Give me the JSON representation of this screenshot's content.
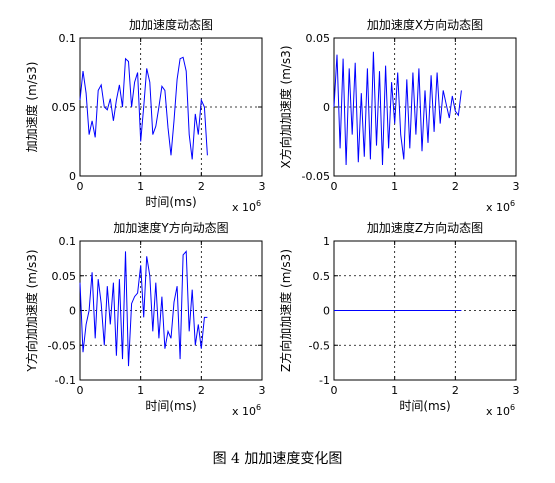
{
  "figure": {
    "caption": "图 4  加加速度变化图"
  },
  "chart_data": [
    {
      "type": "line",
      "title": "加加速度动态图",
      "xlabel": "时间(ms)",
      "ylabel": "加加速度 (m/s3)",
      "x_exponent": "x 10",
      "x_exponent_power": "6",
      "xlim": [
        0,
        3
      ],
      "ylim": [
        0,
        0.1
      ],
      "xticks": [
        "0",
        "1",
        "2",
        "3"
      ],
      "yticks": [
        "0",
        "0.05",
        "0.1"
      ],
      "grid": true,
      "grid_style": "dotted",
      "line_color": "#0000ff",
      "series": [
        {
          "x": [
            0,
            0.05,
            0.1,
            0.15,
            0.2,
            0.25,
            0.3,
            0.35,
            0.4,
            0.45,
            0.5,
            0.55,
            0.6,
            0.65,
            0.7,
            0.75,
            0.8,
            0.85,
            0.9,
            0.95,
            1.0,
            1.05,
            1.1,
            1.15,
            1.2,
            1.25,
            1.3,
            1.35,
            1.4,
            1.45,
            1.5,
            1.55,
            1.6,
            1.65,
            1.7,
            1.75,
            1.8,
            1.85,
            1.9,
            1.95,
            2.0,
            2.05,
            2.1
          ],
          "y": [
            0.055,
            0.076,
            0.06,
            0.03,
            0.04,
            0.028,
            0.062,
            0.066,
            0.05,
            0.048,
            0.056,
            0.04,
            0.055,
            0.066,
            0.05,
            0.085,
            0.083,
            0.05,
            0.068,
            0.075,
            0.025,
            0.05,
            0.078,
            0.068,
            0.03,
            0.036,
            0.05,
            0.065,
            0.062,
            0.035,
            0.015,
            0.04,
            0.07,
            0.085,
            0.086,
            0.076,
            0.03,
            0.012,
            0.045,
            0.03,
            0.055,
            0.05,
            0.015
          ]
        }
      ]
    },
    {
      "type": "line",
      "title": "加加速度X方向动态图",
      "xlabel": "",
      "ylabel": "X方向加加速度 (m/s3)",
      "x_exponent": "x 10",
      "x_exponent_power": "6",
      "xlim": [
        0,
        3
      ],
      "ylim": [
        -0.05,
        0.05
      ],
      "xticks": [
        "0",
        "1",
        "2",
        "3"
      ],
      "yticks": [
        "-0.05",
        "0",
        "0.05"
      ],
      "grid": true,
      "grid_style": "dotted",
      "line_color": "#0000ff",
      "series": [
        {
          "x": [
            0,
            0.05,
            0.1,
            0.15,
            0.2,
            0.25,
            0.3,
            0.35,
            0.4,
            0.45,
            0.5,
            0.55,
            0.6,
            0.65,
            0.7,
            0.75,
            0.8,
            0.85,
            0.9,
            0.95,
            1.0,
            1.05,
            1.1,
            1.15,
            1.2,
            1.25,
            1.3,
            1.35,
            1.4,
            1.45,
            1.5,
            1.55,
            1.6,
            1.65,
            1.7,
            1.75,
            1.8,
            1.85,
            1.9,
            1.95,
            2.0,
            2.05,
            2.1
          ],
          "y": [
            0.0,
            0.038,
            -0.03,
            0.035,
            -0.042,
            0.028,
            -0.02,
            0.032,
            -0.04,
            0.01,
            -0.036,
            0.028,
            -0.038,
            0.04,
            -0.028,
            0.026,
            -0.042,
            0.03,
            -0.03,
            0.018,
            -0.012,
            0.025,
            -0.02,
            -0.038,
            0.02,
            -0.03,
            0.025,
            -0.02,
            0.028,
            -0.032,
            0.012,
            -0.026,
            0.023,
            -0.018,
            0.025,
            -0.012,
            0.012,
            0.002,
            -0.008,
            0.008,
            -0.003,
            -0.006,
            0.012
          ]
        }
      ]
    },
    {
      "type": "line",
      "title": "加加速度Y方向动态图",
      "xlabel": "时间(ms)",
      "ylabel": "Y方向加加速度 (m/s3)",
      "x_exponent": "x 10",
      "x_exponent_power": "6",
      "xlim": [
        0,
        3
      ],
      "ylim": [
        -0.1,
        0.1
      ],
      "xticks": [
        "0",
        "1",
        "2",
        "3"
      ],
      "yticks": [
        "-0.1",
        "-0.05",
        "0",
        "0.05",
        "0.1"
      ],
      "grid": true,
      "grid_style": "dotted",
      "line_color": "#0000ff",
      "series": [
        {
          "x": [
            0,
            0.05,
            0.1,
            0.15,
            0.2,
            0.25,
            0.3,
            0.35,
            0.4,
            0.45,
            0.5,
            0.55,
            0.6,
            0.65,
            0.7,
            0.75,
            0.8,
            0.85,
            0.9,
            0.95,
            1.0,
            1.05,
            1.1,
            1.15,
            1.2,
            1.25,
            1.3,
            1.35,
            1.4,
            1.45,
            1.5,
            1.55,
            1.6,
            1.65,
            1.7,
            1.75,
            1.8,
            1.85,
            1.9,
            1.95,
            2.0,
            2.05,
            2.1
          ],
          "y": [
            0.04,
            -0.06,
            -0.02,
            0.0,
            0.055,
            -0.04,
            0.045,
            0.01,
            -0.05,
            0.035,
            -0.02,
            0.04,
            -0.065,
            0.045,
            -0.07,
            0.085,
            -0.08,
            0.01,
            0.02,
            0.025,
            0.065,
            -0.01,
            0.078,
            0.05,
            -0.03,
            0.04,
            -0.04,
            0.02,
            -0.055,
            -0.03,
            -0.04,
            0.012,
            0.035,
            -0.07,
            0.08,
            0.085,
            -0.03,
            0.03,
            -0.05,
            -0.02,
            -0.055,
            -0.01,
            -0.01
          ]
        }
      ]
    },
    {
      "type": "line",
      "title": "加加速度Z方向动态图",
      "xlabel": "时间(ms)",
      "ylabel": "Z方向加加速度 (m/s3)",
      "x_exponent": "x 10",
      "x_exponent_power": "6",
      "xlim": [
        0,
        3
      ],
      "ylim": [
        -1,
        1
      ],
      "xticks": [
        "0",
        "1",
        "2",
        "3"
      ],
      "yticks": [
        "-1",
        "-0.5",
        "0",
        "0.5",
        "1"
      ],
      "grid": true,
      "grid_style": "dotted",
      "line_color": "#0000ff",
      "series": [
        {
          "x": [
            0,
            2.1
          ],
          "y": [
            0,
            0
          ]
        }
      ]
    }
  ]
}
